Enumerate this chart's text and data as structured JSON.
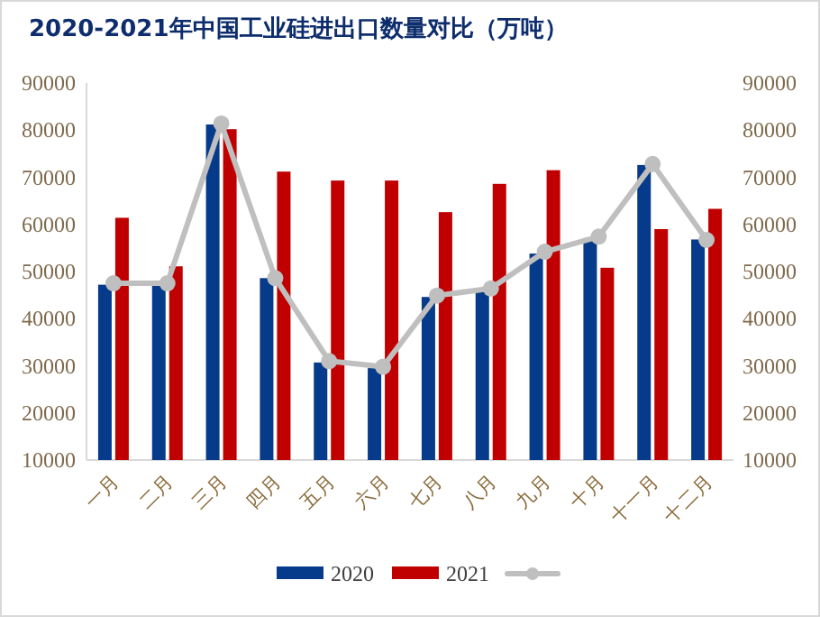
{
  "chart_data": {
    "type": "bar",
    "title": "2020-2021年中国工业硅进出口数量对比（万吨）",
    "categories": [
      "一月",
      "二月",
      "三月",
      "四月",
      "五月",
      "六月",
      "七月",
      "八月",
      "九月",
      "十月",
      "十一月",
      "十二月"
    ],
    "series": [
      {
        "name": "2020",
        "color": "#063a8a",
        "values": [
          47200,
          47200,
          81200,
          48600,
          30700,
          29500,
          44600,
          46500,
          53800,
          57100,
          72600,
          56800
        ]
      },
      {
        "name": "2021",
        "color": "#c00000",
        "values": [
          61400,
          51100,
          80200,
          71200,
          69300,
          69300,
          62600,
          68600,
          71500,
          50800,
          59000,
          63300
        ]
      },
      {
        "type": "line",
        "color": "#bfbfbf",
        "marker": "circle",
        "values": [
          47500,
          47500,
          81400,
          48600,
          31000,
          29800,
          44900,
          46400,
          54200,
          57400,
          72800,
          56700
        ]
      }
    ],
    "ylim": [
      10000,
      90000
    ],
    "yticks": [
      10000,
      20000,
      30000,
      40000,
      50000,
      60000,
      70000,
      80000,
      90000
    ],
    "y2lim": [
      10000,
      90000
    ],
    "y2ticks": [
      10000,
      20000,
      30000,
      40000,
      50000,
      60000,
      70000,
      80000,
      90000
    ],
    "grid": false,
    "legend": "bottom"
  }
}
